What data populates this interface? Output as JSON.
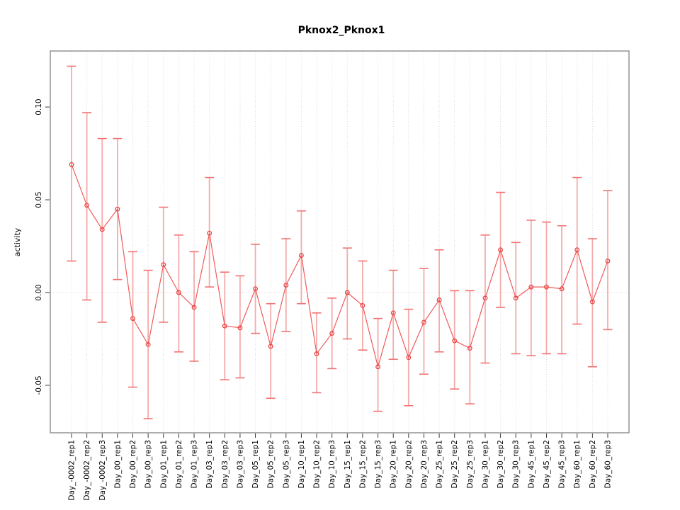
{
  "chart_data": {
    "type": "line",
    "title": "Pknox2_Pknox1",
    "xlabel": "",
    "ylabel": "activity",
    "legend": "none",
    "grid": "vertical dotted gridline at every category; dotted horizontal reference line at y=0",
    "ylim": [
      -0.0756,
      0.1302
    ],
    "yticks": [
      -0.05,
      0.0,
      0.05,
      0.1
    ],
    "ytick_labels": [
      "-0.05",
      "0.00",
      "0.05",
      "0.10"
    ],
    "categories": [
      "Day_-0002_rep1",
      "Day_-0002_rep2",
      "Day_-0002_rep3",
      "Day_00_rep1",
      "Day_00_rep2",
      "Day_00_rep3",
      "Day_01_rep1",
      "Day_01_rep2",
      "Day_01_rep3",
      "Day_03_rep1",
      "Day_03_rep2",
      "Day_03_rep3",
      "Day_05_rep1",
      "Day_05_rep2",
      "Day_05_rep3",
      "Day_10_rep1",
      "Day_10_rep2",
      "Day_10_rep3",
      "Day_15_rep1",
      "Day_15_rep2",
      "Day_15_rep3",
      "Day_20_rep1",
      "Day_20_rep2",
      "Day_20_rep3",
      "Day_25_rep1",
      "Day_25_rep2",
      "Day_25_rep3",
      "Day_30_rep1",
      "Day_30_rep2",
      "Day_30_rep3",
      "Day_45_rep1",
      "Day_45_rep2",
      "Day_45_rep3",
      "Day_60_rep1",
      "Day_60_rep2",
      "Day_60_rep3"
    ],
    "series": [
      {
        "name": "activity",
        "marker": "open-circle",
        "values": [
          0.069,
          0.047,
          0.034,
          0.045,
          -0.014,
          -0.028,
          0.015,
          0.0,
          -0.008,
          0.032,
          -0.018,
          -0.019,
          0.002,
          -0.029,
          0.004,
          0.02,
          -0.033,
          -0.022,
          0.0,
          -0.007,
          -0.04,
          -0.011,
          -0.035,
          -0.016,
          -0.004,
          -0.026,
          -0.03,
          -0.003,
          0.023,
          -0.003,
          0.003,
          0.003,
          0.002,
          0.023,
          -0.005,
          0.017
        ],
        "lower": [
          0.017,
          -0.004,
          -0.016,
          0.007,
          -0.051,
          -0.068,
          -0.016,
          -0.032,
          -0.037,
          0.003,
          -0.047,
          -0.046,
          -0.022,
          -0.057,
          -0.021,
          -0.006,
          -0.054,
          -0.041,
          -0.025,
          -0.031,
          -0.064,
          -0.036,
          -0.061,
          -0.044,
          -0.032,
          -0.052,
          -0.06,
          -0.038,
          -0.008,
          -0.033,
          -0.034,
          -0.033,
          -0.033,
          -0.017,
          -0.04,
          -0.02
        ],
        "upper": [
          0.122,
          0.097,
          0.083,
          0.083,
          0.022,
          0.012,
          0.046,
          0.031,
          0.022,
          0.062,
          0.011,
          0.009,
          0.026,
          -0.006,
          0.029,
          0.044,
          -0.011,
          -0.003,
          0.024,
          0.017,
          -0.014,
          0.012,
          -0.009,
          0.013,
          0.023,
          0.001,
          0.001,
          0.031,
          0.054,
          0.027,
          0.039,
          0.038,
          0.036,
          0.062,
          0.029,
          0.055
        ]
      }
    ],
    "colors": {
      "point": "#e84848",
      "line": "#f05a5a",
      "error_bar": "#f59c9c",
      "error_cap": "#f27272",
      "gridline": "#d9d9d9",
      "zero_line": "#f3c6c6",
      "plot_border": "#9a9a9a",
      "tick": "#3a3a3a",
      "text": "#000000"
    }
  }
}
